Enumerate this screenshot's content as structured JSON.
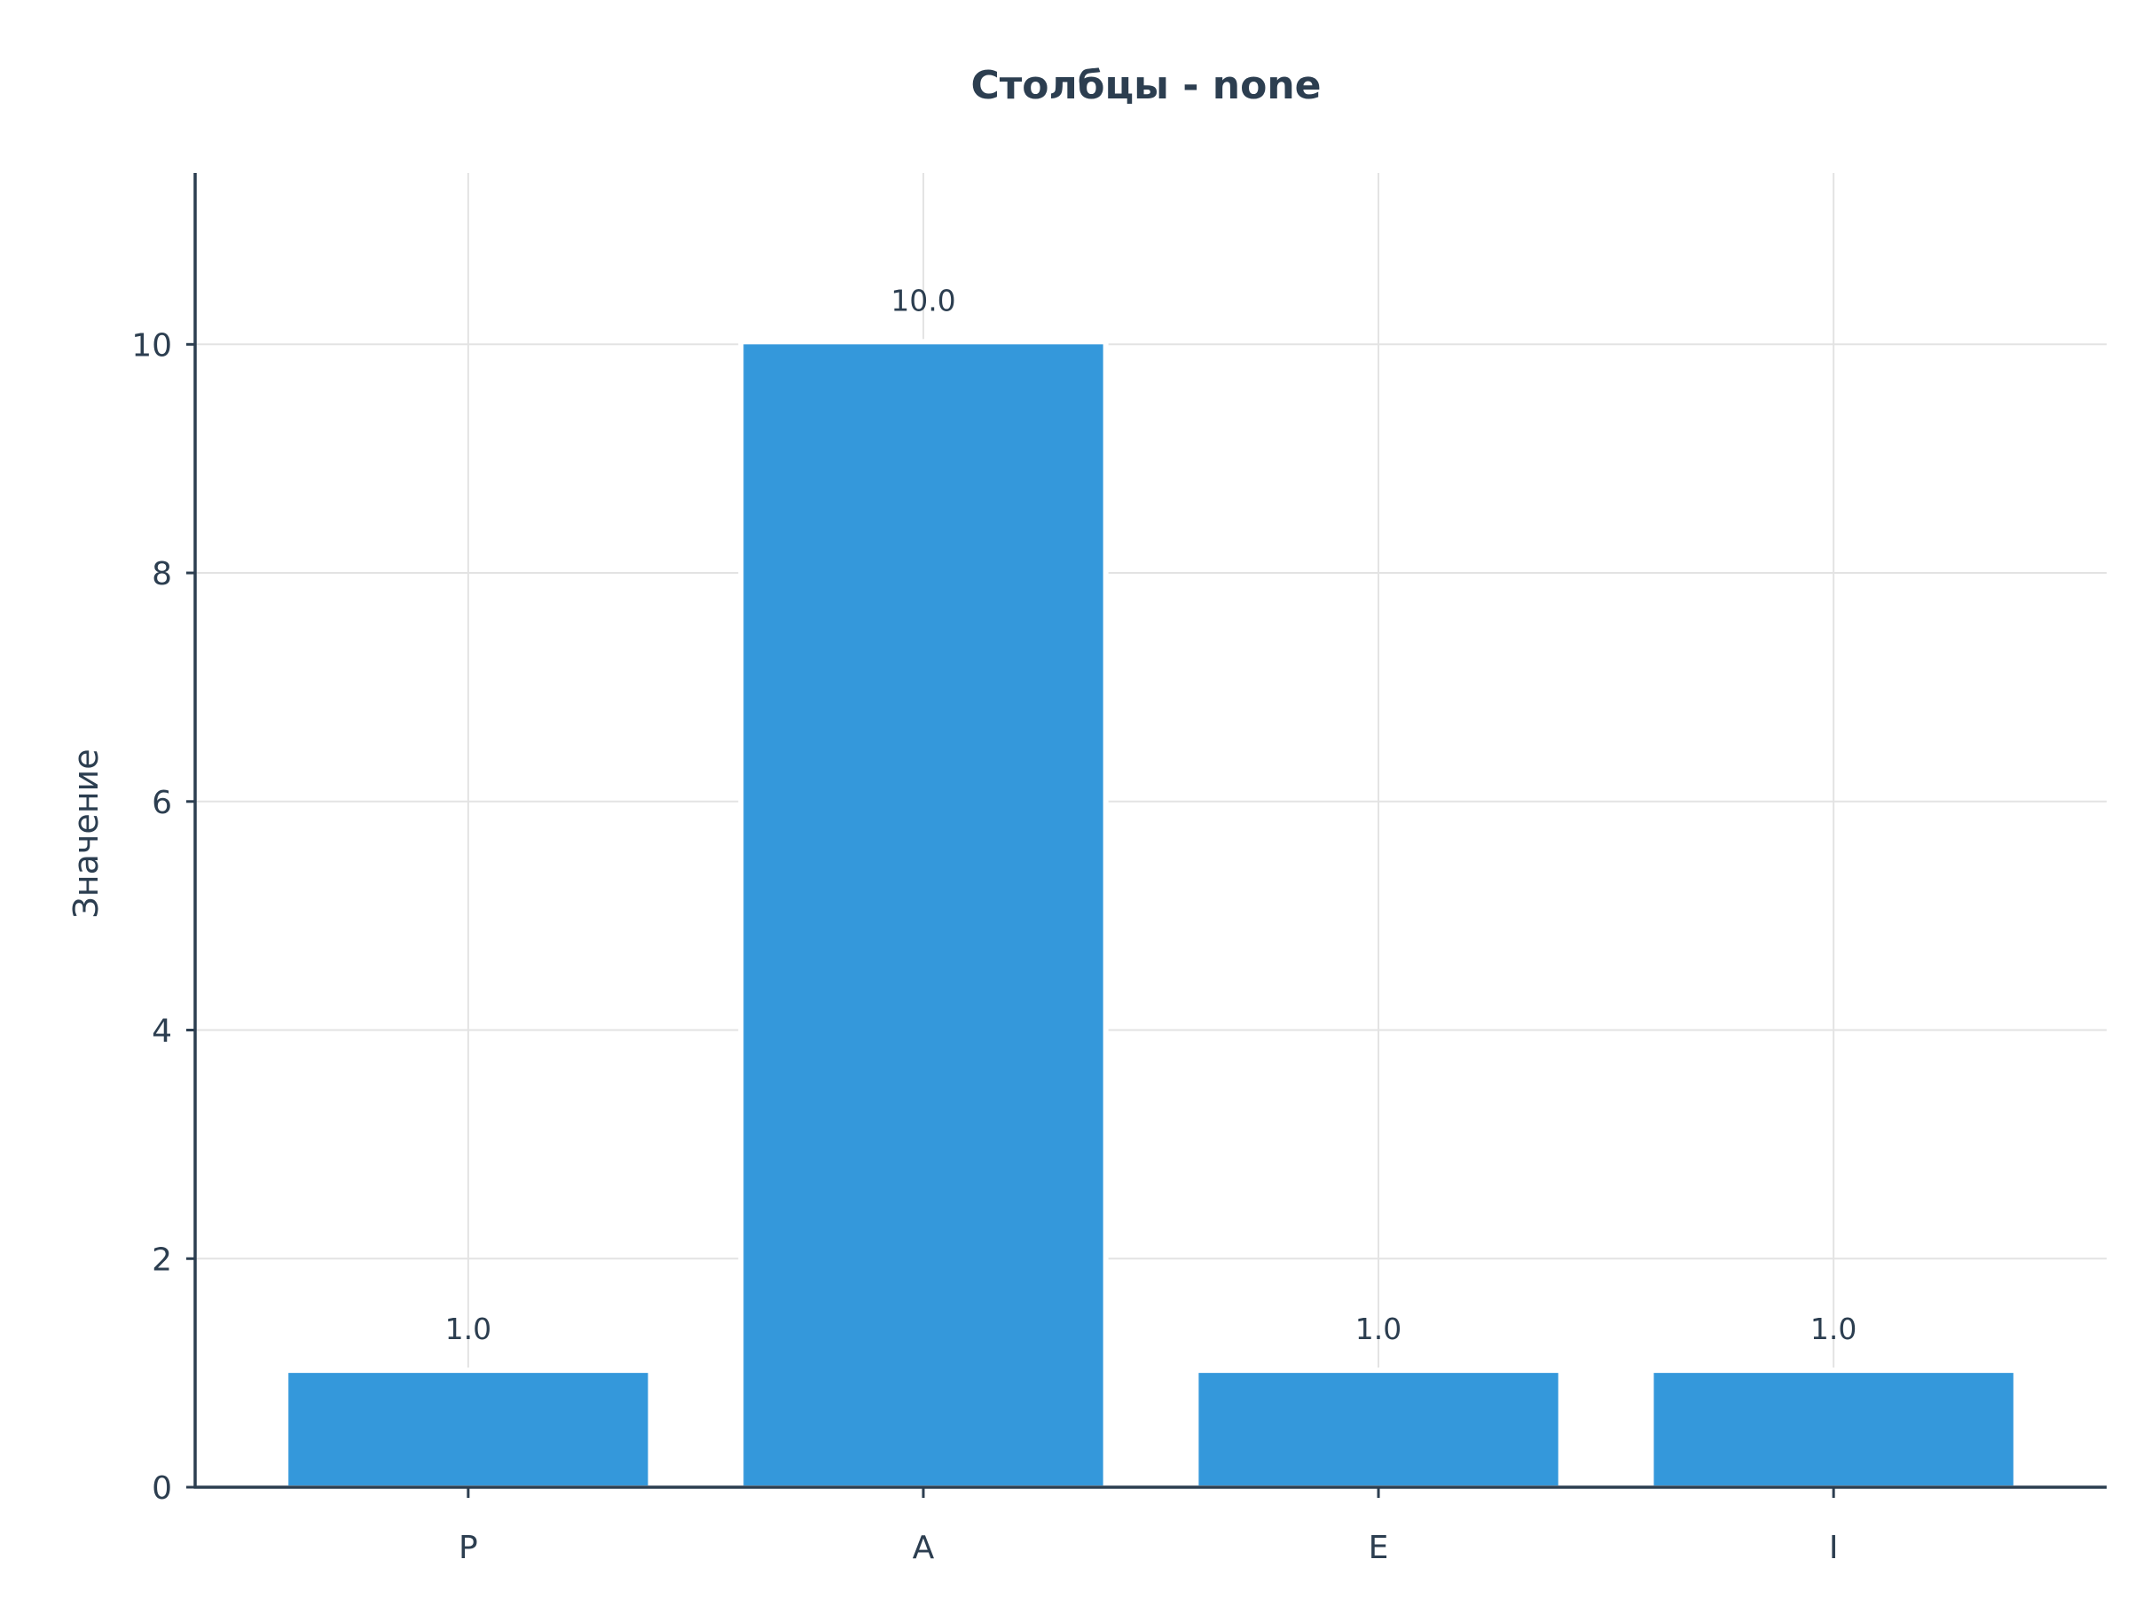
{
  "chart_data": {
    "type": "bar",
    "title": "Столбцы - none",
    "xlabel": "",
    "ylabel": "Значение",
    "categories": [
      "P",
      "A",
      "E",
      "I"
    ],
    "values": [
      1.0,
      10.0,
      1.0,
      1.0
    ],
    "data_labels": [
      "1.0",
      "10.0",
      "1.0",
      "1.0"
    ],
    "ylim": [
      0,
      11.5
    ],
    "yticks": [
      0,
      2,
      4,
      6,
      8,
      10
    ],
    "grid": true,
    "legend": "none",
    "colors": {
      "bar": "#3498db",
      "text": "#2c3e50",
      "grid": "#e3e3e3",
      "axis": "#2c3e50"
    }
  }
}
